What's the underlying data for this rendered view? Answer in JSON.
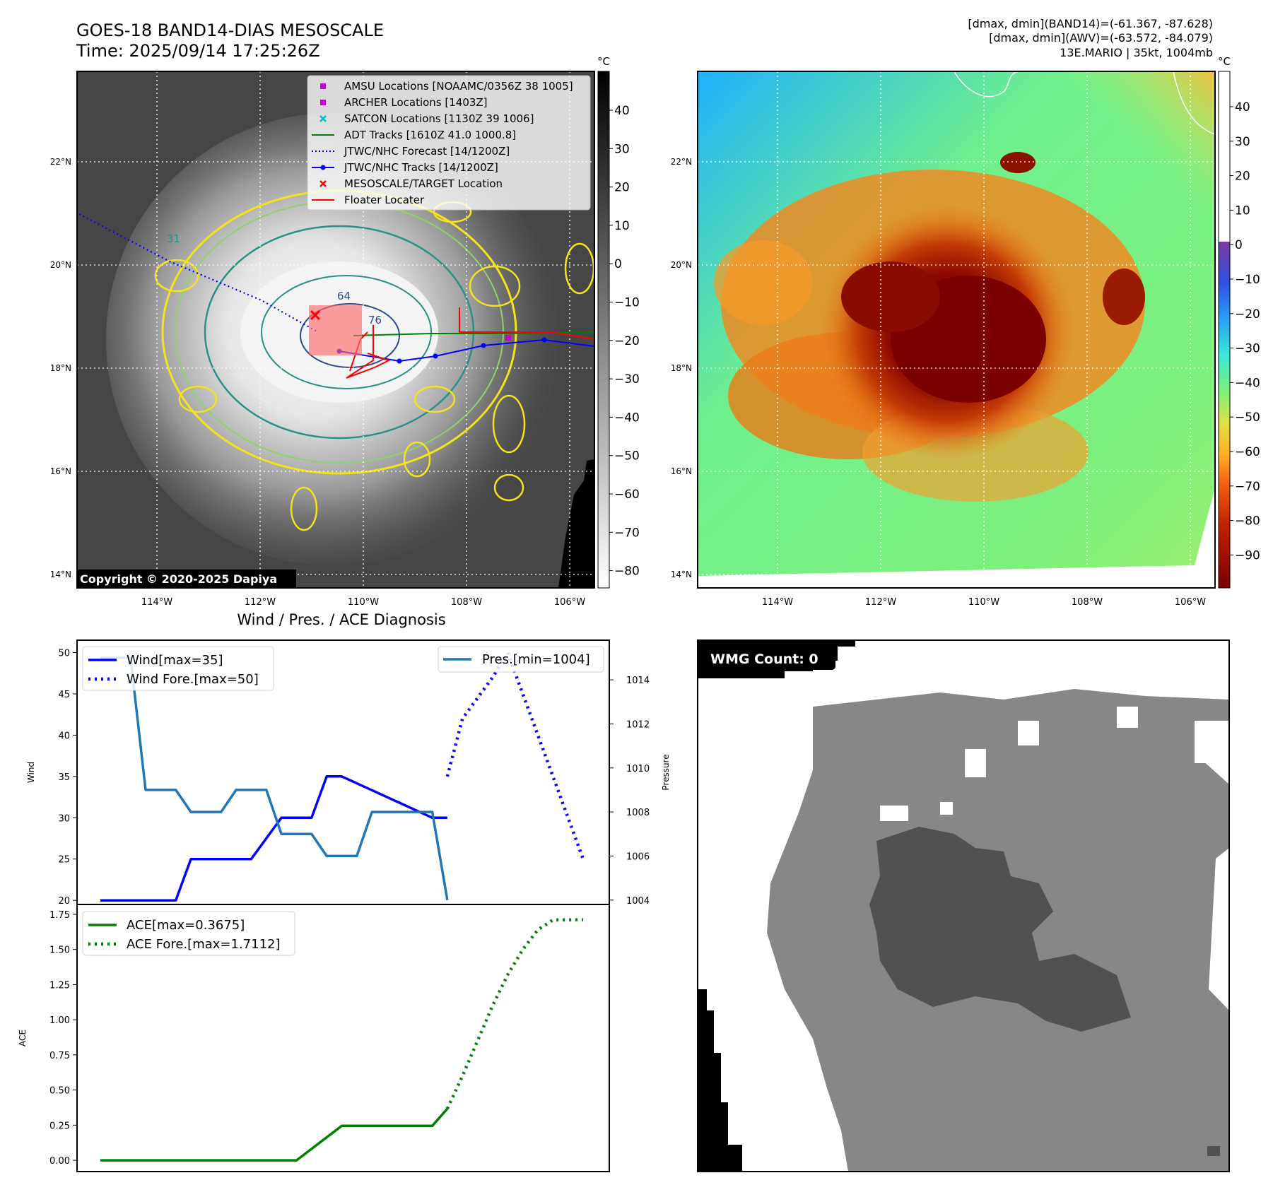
{
  "header": {
    "title_line1": "GOES-18 BAND14-DIAS MESOSCALE",
    "title_line2": "Time: 2025/09/14 17:25:26Z",
    "stats_line1": "[dmax, dmin](BAND14)=(-61.367, -87.628)",
    "stats_line2": "[dmax, dmin](AWV)=(-63.572, -84.079)",
    "stats_line3": "13E.MARIO | 35kt, 1004mb"
  },
  "colors": {
    "wind": "#0000ff",
    "pressure": "#1f77b4",
    "ace": "#008000",
    "contour_yellow": "#f5e31a",
    "contour_green": "#8fd16a",
    "contour_teal": "#2a8f86",
    "locator": "#ff0000"
  },
  "maps": {
    "lat_ticks": [
      "14°N",
      "16°N",
      "18°N",
      "20°N",
      "22°N"
    ],
    "lon_ticks": [
      "114°W",
      "112°W",
      "110°W",
      "108°W",
      "106°W"
    ],
    "copyright": "Copyright © 2020-2025 Dapiya",
    "contour_labels": [
      "64",
      "76",
      "31"
    ],
    "left_colorbar": {
      "unit": "°C",
      "ticks": [
        "40",
        "30",
        "20",
        "10",
        "0",
        "−10",
        "−20",
        "−30",
        "−40",
        "−50",
        "−60",
        "−70",
        "−80"
      ]
    },
    "right_colorbar": {
      "unit": "°C",
      "ticks": [
        "40",
        "30",
        "20",
        "10",
        "0",
        "−10",
        "−20",
        "−30",
        "−40",
        "−50",
        "−60",
        "−70",
        "−80",
        "−90"
      ]
    },
    "legend": [
      {
        "label": "AMSU Locations [NOAAMC/0356Z 38 1005]",
        "marker": "square",
        "color": "#cc00cc"
      },
      {
        "label": "ARCHER Locations [1403Z]",
        "marker": "square",
        "color": "#cc00cc"
      },
      {
        "label": "SATCON Locations [1130Z 39 1006]",
        "marker": "x",
        "color": "#00bfbf"
      },
      {
        "label": "ADT Tracks [1610Z 41.0 1000.8]",
        "marker": "line",
        "color": "#008000"
      },
      {
        "label": "JTWC/NHC Forecast [14/1200Z]",
        "marker": "dotted",
        "color": "#0000ff"
      },
      {
        "label": "JTWC/NHC Tracks [14/1200Z]",
        "marker": "line-dot",
        "color": "#0000ff"
      },
      {
        "label": "MESOSCALE/TARGET Location",
        "marker": "x",
        "color": "#ff0000"
      },
      {
        "label": "Floater Locater",
        "marker": "line",
        "color": "#ff0000"
      }
    ]
  },
  "wmg": {
    "label": "WMG Count: 0"
  },
  "chart_data": [
    {
      "type": "line",
      "title": "Wind / Pres. / ACE Diagnosis",
      "ylabel": "Wind",
      "y2label": "Pressure",
      "ylim": [
        19.5,
        51.5
      ],
      "y2lim": [
        1003.8,
        1015.8
      ],
      "yticks": [
        "20",
        "25",
        "30",
        "35",
        "40",
        "45",
        "50"
      ],
      "y2ticks": [
        "1004",
        "1006",
        "1008",
        "1010",
        "1012",
        "1014"
      ],
      "x_steps": 32,
      "series": [
        {
          "name": "Wind[max=35]",
          "axis": "left",
          "style": "solid",
          "x": [
            0,
            5,
            6,
            10,
            12,
            14,
            15,
            16,
            22,
            23
          ],
          "y": [
            20,
            20,
            25,
            25,
            30,
            30,
            35,
            35,
            30,
            30
          ]
        },
        {
          "name": "Wind Fore.[max=50]",
          "axis": "left",
          "style": "dotted",
          "x": [
            23,
            24,
            26,
            27,
            28,
            29,
            30,
            31,
            32
          ],
          "y": [
            35,
            42,
            47,
            50,
            45,
            40,
            35,
            30,
            25
          ]
        },
        {
          "name": "Pres.[min=1004]",
          "axis": "right",
          "style": "solid",
          "x": [
            0,
            2,
            3,
            5,
            6,
            8,
            9,
            11,
            12,
            14,
            15,
            17,
            18,
            22,
            23
          ],
          "y": [
            1015,
            1015,
            1009,
            1009,
            1008,
            1008,
            1009,
            1009,
            1007,
            1007,
            1006,
            1006,
            1008,
            1008,
            1004
          ]
        }
      ]
    },
    {
      "type": "line",
      "ylabel": "ACE",
      "ylim": [
        -0.08,
        1.82
      ],
      "yticks": [
        "0.00",
        "0.25",
        "0.50",
        "0.75",
        "1.00",
        "1.25",
        "1.50",
        "1.75"
      ],
      "series": [
        {
          "name": "ACE[max=0.3675]",
          "style": "solid",
          "x": [
            0,
            13,
            16,
            22,
            23
          ],
          "y": [
            0,
            0,
            0.245,
            0.245,
            0.3675
          ]
        },
        {
          "name": "ACE Fore.[max=1.7112]",
          "style": "dotted",
          "x": [
            23,
            24,
            25,
            26,
            27,
            28,
            29,
            30,
            32
          ],
          "y": [
            0.3675,
            0.6,
            0.85,
            1.1,
            1.32,
            1.5,
            1.64,
            1.71,
            1.7112
          ]
        }
      ]
    }
  ]
}
